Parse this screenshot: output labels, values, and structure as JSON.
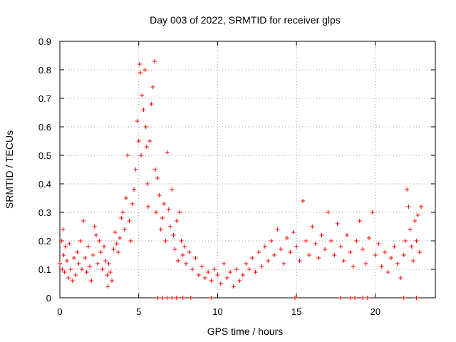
{
  "chart_data": {
    "type": "scatter",
    "title": "Day 003 of 2022, SRMTID for receiver glps",
    "xlabel": "GPS time / hours",
    "ylabel": "SRMTID / TECUs",
    "xlim": [
      0,
      23.8
    ],
    "ylim": [
      0,
      0.9
    ],
    "xticks": [
      0,
      5,
      10,
      15,
      20
    ],
    "xtick_labels": [
      "0",
      "5",
      "10",
      "15",
      "20"
    ],
    "yticks": [
      0,
      0.1,
      0.2,
      0.3,
      0.4,
      0.5,
      0.6,
      0.7,
      0.8,
      0.9
    ],
    "ytick_labels": [
      "0",
      "0.1",
      "0.2",
      "0.3",
      "0.4",
      "0.5",
      "0.6",
      "0.7",
      "0.8",
      "0.9"
    ],
    "grid": true,
    "marker": "+",
    "series": [
      {
        "name": "SRMTID",
        "color": "#ff0000",
        "points": [
          [
            0.0,
            0.12
          ],
          [
            0.1,
            0.2
          ],
          [
            0.15,
            0.1
          ],
          [
            0.2,
            0.24
          ],
          [
            0.25,
            0.15
          ],
          [
            0.3,
            0.09
          ],
          [
            0.35,
            0.18
          ],
          [
            0.45,
            0.13
          ],
          [
            0.55,
            0.07
          ],
          [
            0.6,
            0.19
          ],
          [
            0.7,
            0.1
          ],
          [
            0.8,
            0.06
          ],
          [
            0.9,
            0.14
          ],
          [
            1.0,
            0.08
          ],
          [
            1.1,
            0.16
          ],
          [
            1.2,
            0.12
          ],
          [
            1.3,
            0.2
          ],
          [
            1.4,
            0.1
          ],
          [
            1.5,
            0.27
          ],
          [
            1.6,
            0.14
          ],
          [
            1.7,
            0.09
          ],
          [
            1.8,
            0.18
          ],
          [
            1.9,
            0.11
          ],
          [
            2.0,
            0.06
          ],
          [
            2.1,
            0.15
          ],
          [
            2.2,
            0.25
          ],
          [
            2.3,
            0.22
          ],
          [
            2.4,
            0.12
          ],
          [
            2.5,
            0.2
          ],
          [
            2.6,
            0.16
          ],
          [
            2.7,
            0.1
          ],
          [
            2.8,
            0.18
          ],
          [
            2.9,
            0.13
          ],
          [
            3.0,
            0.08
          ],
          [
            3.05,
            0.04
          ],
          [
            3.1,
            0.12
          ],
          [
            3.2,
            0.09
          ],
          [
            3.3,
            0.06
          ],
          [
            3.4,
            0.17
          ],
          [
            3.5,
            0.23
          ],
          [
            3.6,
            0.19
          ],
          [
            3.7,
            0.16
          ],
          [
            3.8,
            0.21
          ],
          [
            3.9,
            0.28
          ],
          [
            4.0,
            0.3
          ],
          [
            4.1,
            0.24
          ],
          [
            4.2,
            0.35
          ],
          [
            4.3,
            0.5
          ],
          [
            4.4,
            0.27
          ],
          [
            4.5,
            0.2
          ],
          [
            4.6,
            0.33
          ],
          [
            4.7,
            0.38
          ],
          [
            4.8,
            0.45
          ],
          [
            4.9,
            0.62
          ],
          [
            5.0,
            0.55
          ],
          [
            5.05,
            0.82
          ],
          [
            5.1,
            0.79
          ],
          [
            5.15,
            0.5
          ],
          [
            5.2,
            0.71
          ],
          [
            5.3,
            0.66
          ],
          [
            5.4,
            0.8
          ],
          [
            5.45,
            0.6
          ],
          [
            5.5,
            0.53
          ],
          [
            5.55,
            0.4
          ],
          [
            5.6,
            0.32
          ],
          [
            5.7,
            0.55
          ],
          [
            5.8,
            0.68
          ],
          [
            5.9,
            0.74
          ],
          [
            6.0,
            0.83
          ],
          [
            6.05,
            0.45
          ],
          [
            6.1,
            0.3
          ],
          [
            6.2,
            0.42
          ],
          [
            6.3,
            0.36
          ],
          [
            6.4,
            0.24
          ],
          [
            6.5,
            0.28
          ],
          [
            6.6,
            0.33
          ],
          [
            6.7,
            0.2
          ],
          [
            6.8,
            0.51
          ],
          [
            6.9,
            0.31
          ],
          [
            7.0,
            0.25
          ],
          [
            7.1,
            0.38
          ],
          [
            7.2,
            0.22
          ],
          [
            7.3,
            0.17
          ],
          [
            7.4,
            0.27
          ],
          [
            7.5,
            0.13
          ],
          [
            7.6,
            0.3
          ],
          [
            7.7,
            0.2
          ],
          [
            7.8,
            0.15
          ],
          [
            7.9,
            0.18
          ],
          [
            8.0,
            0.12
          ],
          [
            8.2,
            0.16
          ],
          [
            8.4,
            0.1
          ],
          [
            8.6,
            0.14
          ],
          [
            8.8,
            0.08
          ],
          [
            9.0,
            0.11
          ],
          [
            9.2,
            0.07
          ],
          [
            9.4,
            0.09
          ],
          [
            9.6,
            0.06
          ],
          [
            9.8,
            0.1
          ],
          [
            10.0,
            0.08
          ],
          [
            10.2,
            0.05
          ],
          [
            10.4,
            0.12
          ],
          [
            10.6,
            0.07
          ],
          [
            10.8,
            0.09
          ],
          [
            11.0,
            0.04
          ],
          [
            11.2,
            0.1
          ],
          [
            11.4,
            0.06
          ],
          [
            11.6,
            0.08
          ],
          [
            11.8,
            0.12
          ],
          [
            12.0,
            0.1
          ],
          [
            12.2,
            0.14
          ],
          [
            12.4,
            0.09
          ],
          [
            12.6,
            0.16
          ],
          [
            12.8,
            0.11
          ],
          [
            13.0,
            0.18
          ],
          [
            13.2,
            0.13
          ],
          [
            13.4,
            0.2
          ],
          [
            13.6,
            0.15
          ],
          [
            13.8,
            0.24
          ],
          [
            14.0,
            0.17
          ],
          [
            14.2,
            0.12
          ],
          [
            14.4,
            0.21
          ],
          [
            14.6,
            0.16
          ],
          [
            14.8,
            0.23
          ],
          [
            15.0,
            0.18
          ],
          [
            15.2,
            0.13
          ],
          [
            15.4,
            0.34
          ],
          [
            15.6,
            0.2
          ],
          [
            15.8,
            0.15
          ],
          [
            16.0,
            0.25
          ],
          [
            16.2,
            0.19
          ],
          [
            16.4,
            0.14
          ],
          [
            16.6,
            0.22
          ],
          [
            16.8,
            0.17
          ],
          [
            17.0,
            0.3
          ],
          [
            17.2,
            0.2
          ],
          [
            17.4,
            0.15
          ],
          [
            17.6,
            0.26
          ],
          [
            17.8,
            0.18
          ],
          [
            18.0,
            0.13
          ],
          [
            18.2,
            0.22
          ],
          [
            18.4,
            0.16
          ],
          [
            18.6,
            0.11
          ],
          [
            18.8,
            0.2
          ],
          [
            19.0,
            0.27
          ],
          [
            19.2,
            0.17
          ],
          [
            19.4,
            0.12
          ],
          [
            19.6,
            0.21
          ],
          [
            19.8,
            0.3
          ],
          [
            20.0,
            0.15
          ],
          [
            20.2,
            0.19
          ],
          [
            20.4,
            0.11
          ],
          [
            20.6,
            0.16
          ],
          [
            20.8,
            0.09
          ],
          [
            21.0,
            0.14
          ],
          [
            21.2,
            0.18
          ],
          [
            21.4,
            0.12
          ],
          [
            21.6,
            0.07
          ],
          [
            21.8,
            0.15
          ],
          [
            21.9,
            0.2
          ],
          [
            22.0,
            0.38
          ],
          [
            22.1,
            0.32
          ],
          [
            22.2,
            0.24
          ],
          [
            22.3,
            0.18
          ],
          [
            22.4,
            0.13
          ],
          [
            22.5,
            0.27
          ],
          [
            22.6,
            0.2
          ],
          [
            22.7,
            0.29
          ],
          [
            22.8,
            0.16
          ],
          [
            22.9,
            0.32
          ],
          [
            6.2,
            0.0
          ],
          [
            6.5,
            0.0
          ],
          [
            6.8,
            0.0
          ],
          [
            7.1,
            0.0
          ],
          [
            7.4,
            0.0
          ],
          [
            7.8,
            0.0
          ],
          [
            8.3,
            0.0
          ],
          [
            9.6,
            0.0
          ],
          [
            14.9,
            0.0
          ],
          [
            17.8,
            0.0
          ],
          [
            18.4,
            0.0
          ],
          [
            18.7,
            0.0
          ],
          [
            19.2,
            0.0
          ],
          [
            19.5,
            0.0
          ],
          [
            21.8,
            0.0
          ],
          [
            22.6,
            0.0
          ]
        ]
      }
    ]
  }
}
